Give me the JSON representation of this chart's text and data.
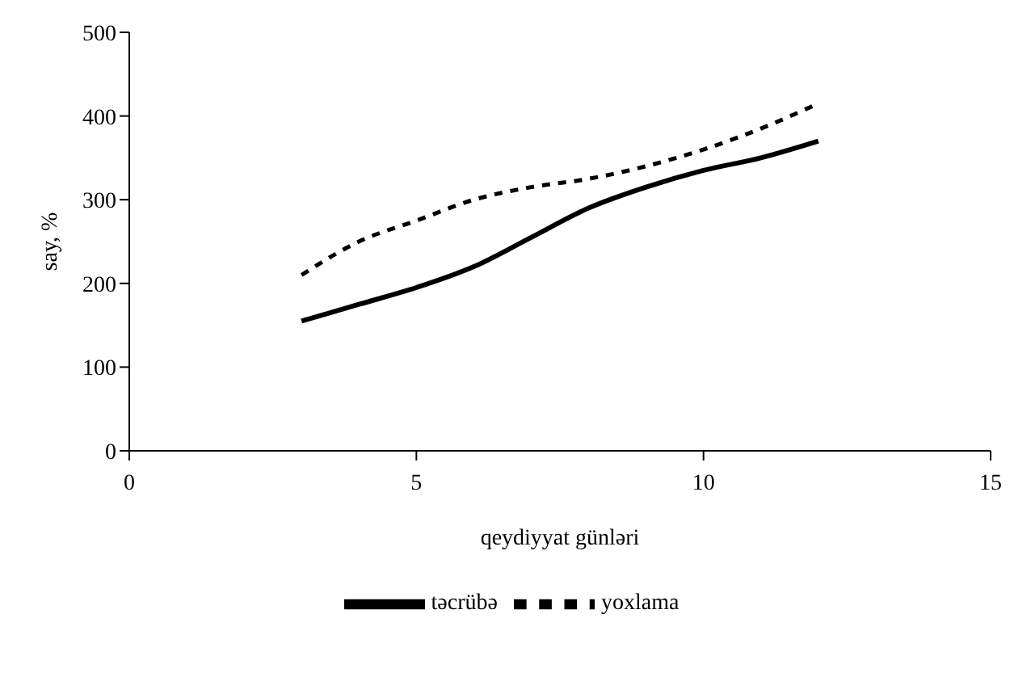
{
  "chart_data": {
    "type": "line",
    "xlabel": "qeydiyyat günləri",
    "ylabel": "say, %",
    "x": [
      3,
      4,
      5,
      6,
      7,
      8,
      9,
      10,
      11,
      12
    ],
    "series": [
      {
        "name": "təcrübə",
        "color": "#000000",
        "line_style": "solid",
        "values": [
          155,
          175,
          195,
          220,
          255,
          290,
          315,
          335,
          350,
          370
        ]
      },
      {
        "name": "yoxlama",
        "color": "#000000",
        "line_style": "dashed",
        "values": [
          210,
          250,
          275,
          300,
          315,
          325,
          340,
          360,
          385,
          415
        ]
      }
    ],
    "xlim": [
      0,
      15
    ],
    "xticks": [
      0,
      5,
      10,
      15
    ],
    "ylim": [
      0,
      500
    ],
    "yticks": [
      0,
      100,
      200,
      300,
      400,
      500
    ],
    "grid": false,
    "legend": "bottom",
    "marker": "none"
  }
}
